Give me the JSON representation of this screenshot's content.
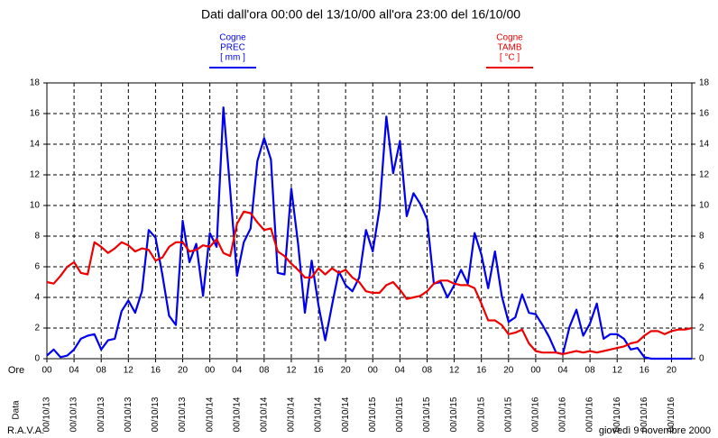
{
  "chart_data": {
    "type": "line",
    "title": "Dati dall'ora 00:00 del 13/10/00 all'ora 23:00 del 16/10/00",
    "x_row_label": "Ore",
    "date_row_label": "Data",
    "footer_left": "R.A.V.A.",
    "footer_right": "giovedì 9 novembre 2000",
    "x": [
      0,
      1,
      2,
      3,
      4,
      5,
      6,
      7,
      8,
      9,
      10,
      11,
      12,
      13,
      14,
      15,
      16,
      17,
      18,
      19,
      20,
      21,
      22,
      23,
      24,
      25,
      26,
      27,
      28,
      29,
      30,
      31,
      32,
      33,
      34,
      35,
      36,
      37,
      38,
      39,
      40,
      41,
      42,
      43,
      44,
      45,
      46,
      47,
      48,
      49,
      50,
      51,
      52,
      53,
      54,
      55,
      56,
      57,
      58,
      59,
      60,
      61,
      62,
      63,
      64,
      65,
      66,
      67,
      68,
      69,
      70,
      71,
      72,
      73,
      74,
      75,
      76,
      77,
      78,
      79,
      80,
      81,
      82,
      83,
      84,
      85,
      86,
      87,
      88,
      89,
      90,
      91,
      92,
      93,
      94,
      95
    ],
    "xlim": [
      0,
      95
    ],
    "xticks": [
      {
        "value": 0,
        "label": "00"
      },
      {
        "value": 4,
        "label": "04"
      },
      {
        "value": 8,
        "label": "08"
      },
      {
        "value": 12,
        "label": "12"
      },
      {
        "value": 16,
        "label": "16"
      },
      {
        "value": 20,
        "label": "20"
      },
      {
        "value": 24,
        "label": "00"
      },
      {
        "value": 28,
        "label": "04"
      },
      {
        "value": 32,
        "label": "08"
      },
      {
        "value": 36,
        "label": "12"
      },
      {
        "value": 40,
        "label": "16"
      },
      {
        "value": 44,
        "label": "20"
      },
      {
        "value": 48,
        "label": "00"
      },
      {
        "value": 52,
        "label": "04"
      },
      {
        "value": 56,
        "label": "08"
      },
      {
        "value": 60,
        "label": "12"
      },
      {
        "value": 64,
        "label": "16"
      },
      {
        "value": 68,
        "label": "20"
      },
      {
        "value": 72,
        "label": "00"
      },
      {
        "value": 76,
        "label": "04"
      },
      {
        "value": 80,
        "label": "08"
      },
      {
        "value": 84,
        "label": "12"
      },
      {
        "value": 88,
        "label": "16"
      },
      {
        "value": 92,
        "label": "20"
      }
    ],
    "xtick_dates": [
      "00/10/13",
      "00/10/13",
      "00/10/13",
      "00/10/13",
      "00/10/13",
      "00/10/13",
      "00/10/14",
      "00/10/14",
      "00/10/14",
      "00/10/14",
      "00/10/14",
      "00/10/14",
      "00/10/15",
      "00/10/15",
      "00/10/15",
      "00/10/15",
      "00/10/15",
      "00/10/15",
      "00/10/16",
      "00/10/16",
      "00/10/16",
      "00/10/16",
      "00/10/16",
      "00/10/16"
    ],
    "ylim": [
      0,
      18
    ],
    "yticks": [
      0,
      2,
      4,
      6,
      8,
      10,
      12,
      14,
      16,
      18
    ],
    "y2lim": [
      0,
      18
    ],
    "y2ticks": [
      0,
      2,
      4,
      6,
      8,
      10,
      12,
      14,
      16,
      18
    ],
    "grid": true,
    "series": [
      {
        "name": "Cogne",
        "variable": "PREC",
        "unit": "[ mm ]",
        "color": "#0000ee",
        "axis": "y",
        "values": [
          0.2,
          0.6,
          0.1,
          0.2,
          0.6,
          1.3,
          1.5,
          1.6,
          0.6,
          1.2,
          1.3,
          3.1,
          3.8,
          3.0,
          4.4,
          8.4,
          7.9,
          5.5,
          2.8,
          2.2,
          9.0,
          6.3,
          7.5,
          4.1,
          8.2,
          7.3,
          16.4,
          11.0,
          5.4,
          7.6,
          8.5,
          12.9,
          14.4,
          13.0,
          5.6,
          5.5,
          11.1,
          7.5,
          3.0,
          6.4,
          3.5,
          1.2,
          3.5,
          5.7,
          4.8,
          4.4,
          5.3,
          8.4,
          7.0,
          9.8,
          15.8,
          12.1,
          14.2,
          9.3,
          10.8,
          10.1,
          9.1,
          4.9,
          5.0,
          4.0,
          4.8,
          5.8,
          4.9,
          8.2,
          6.8,
          4.6,
          7.0,
          4.1,
          2.4,
          2.7,
          4.2,
          3.0,
          2.9,
          2.2,
          1.4,
          0.4,
          0.3,
          2.1,
          3.2,
          1.5,
          2.3,
          3.6,
          1.3,
          1.6,
          1.6,
          1.3,
          0.6,
          0.7,
          0.1,
          0,
          0,
          0,
          0,
          0,
          0,
          0
        ]
      },
      {
        "name": "Cogne",
        "variable": "TAMB",
        "unit": "[ °C ]",
        "color": "#ee0000",
        "axis": "y2",
        "values": [
          5.0,
          4.9,
          5.4,
          6.0,
          6.3,
          5.6,
          5.5,
          7.6,
          7.3,
          6.9,
          7.2,
          7.6,
          7.4,
          7.0,
          7.2,
          7.1,
          6.4,
          6.6,
          7.3,
          7.6,
          7.6,
          7.0,
          7.1,
          7.4,
          7.3,
          7.8,
          6.9,
          6.7,
          8.8,
          9.6,
          9.5,
          8.9,
          8.4,
          8.5,
          7.0,
          6.7,
          6.2,
          5.8,
          5.3,
          5.3,
          5.9,
          5.5,
          5.9,
          5.6,
          5.8,
          5.3,
          5.0,
          4.4,
          4.3,
          4.3,
          4.8,
          5.0,
          4.5,
          3.9,
          4.0,
          4.1,
          4.4,
          4.9,
          5.1,
          5.1,
          4.9,
          4.8,
          4.8,
          4.6,
          3.6,
          2.5,
          2.5,
          2.2,
          1.6,
          1.7,
          1.9,
          1.0,
          0.5,
          0.4,
          0.4,
          0.4,
          0.3,
          0.4,
          0.5,
          0.4,
          0.5,
          0.4,
          0.5,
          0.6,
          0.7,
          0.8,
          1.0,
          1.1,
          1.5,
          1.8,
          1.8,
          1.6,
          1.8,
          1.9,
          1.9,
          2.0
        ]
      }
    ]
  }
}
